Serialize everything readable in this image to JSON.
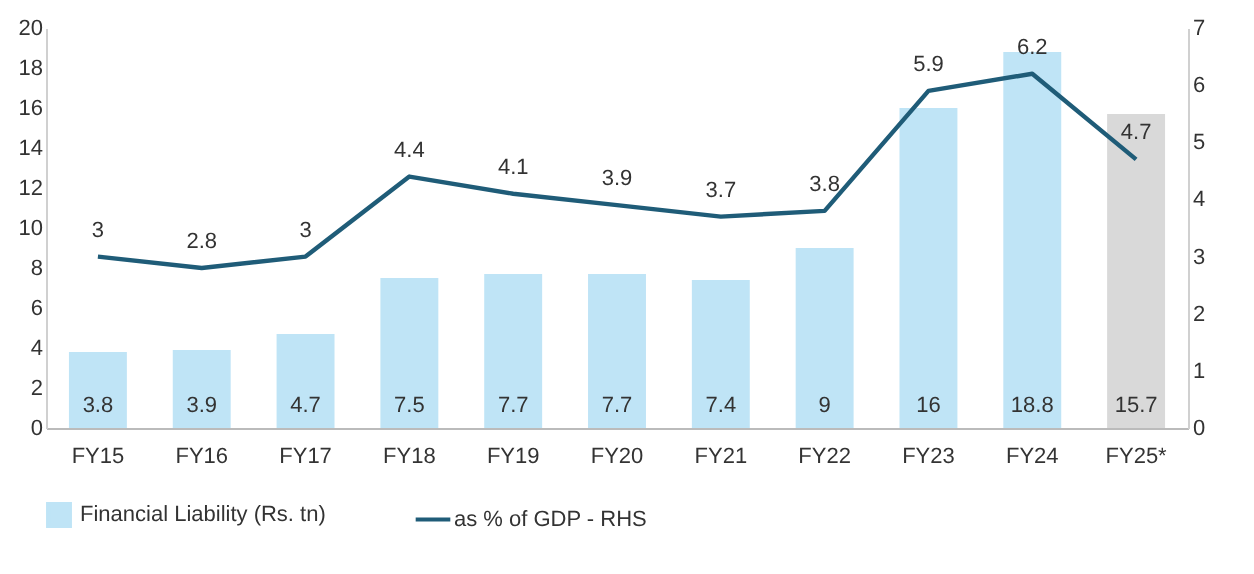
{
  "chart_data": {
    "type": "bar",
    "categories": [
      "FY15",
      "FY16",
      "FY17",
      "FY18",
      "FY19",
      "FY20",
      "FY21",
      "FY22",
      "FY23",
      "FY24",
      "FY25*"
    ],
    "series": [
      {
        "name": "Financial Liability (Rs. tn)",
        "color": "#bfe4f6",
        "colors": [
          "#bfe4f6",
          "#bfe4f6",
          "#bfe4f6",
          "#bfe4f6",
          "#bfe4f6",
          "#bfe4f6",
          "#bfe4f6",
          "#bfe4f6",
          "#bfe4f6",
          "#bfe4f6",
          "#d9d9d9"
        ],
        "values": [
          3.8,
          3.9,
          4.7,
          7.5,
          7.7,
          7.7,
          7.4,
          9,
          16,
          18.8,
          15.7
        ]
      },
      {
        "name": "as % of GDP - RHS",
        "type": "line",
        "axis": "y2",
        "color": "#1f5c78",
        "values": [
          3,
          2.8,
          3,
          4.4,
          4.1,
          3.9,
          3.7,
          3.8,
          5.9,
          6.2,
          4.7
        ]
      }
    ],
    "ylim": [
      0,
      20
    ],
    "yticks": [
      0,
      2,
      4,
      6,
      8,
      10,
      12,
      14,
      16,
      18,
      20
    ],
    "y2lim": [
      0,
      7
    ],
    "y2ticks": [
      0,
      1,
      2,
      3,
      4,
      5,
      6,
      7
    ],
    "data_labels": true,
    "legend": "bottom"
  }
}
